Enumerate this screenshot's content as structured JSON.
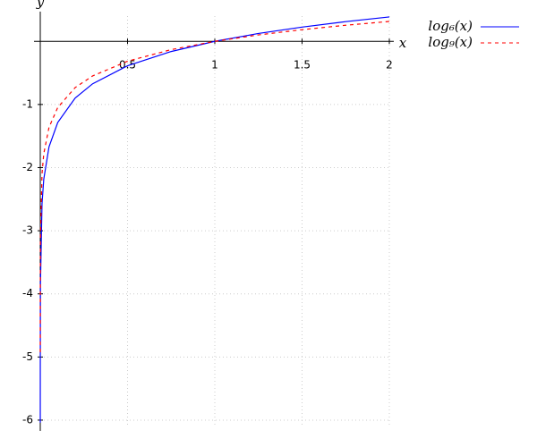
{
  "chart_data": {
    "type": "line",
    "x_label": "x",
    "y_label": "y",
    "x": [
      2e-05,
      0.0001,
      0.001,
      0.01,
      0.02,
      0.05,
      0.1,
      0.2,
      0.3,
      0.5,
      0.75,
      1,
      1.25,
      1.5,
      1.75,
      2
    ],
    "series": [
      {
        "name": "log₆(x)",
        "color": "#0000ff",
        "line_style": "solid",
        "values": [
          -6.039,
          -5.14,
          -3.855,
          -2.57,
          -2.183,
          -1.672,
          -1.285,
          -0.898,
          -0.672,
          -0.387,
          -0.161,
          0,
          0.125,
          0.226,
          0.312,
          0.387
        ]
      },
      {
        "name": "log₉(x)",
        "color": "#ff0000",
        "line_style": "dashed",
        "values": [
          -4.924,
          -4.192,
          -3.144,
          -2.096,
          -1.78,
          -1.363,
          -1.048,
          -0.732,
          -0.548,
          -0.315,
          -0.131,
          0,
          0.102,
          0.185,
          0.255,
          0.315
        ]
      }
    ],
    "xlim": [
      0,
      2
    ],
    "ylim": [
      -6.1,
      0.4
    ],
    "xticks": [
      0.5,
      1,
      1.5,
      2
    ],
    "yticks": [
      -1,
      -2,
      -3,
      -4,
      -5,
      -6
    ],
    "grid": true
  }
}
